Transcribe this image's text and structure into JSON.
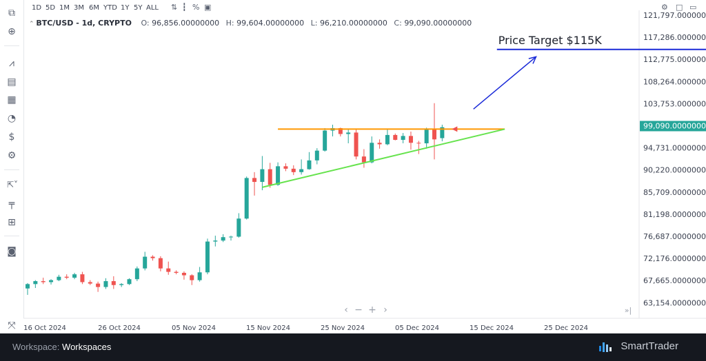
{
  "toolbar": {
    "timeframes": [
      "1D",
      "5D",
      "1M",
      "3M",
      "6M",
      "YTD",
      "1Y",
      "5Y",
      "ALL"
    ],
    "icons": [
      "compare-icon",
      "candles-icon",
      "percent-icon",
      "log-scale-icon"
    ]
  },
  "legend": {
    "symbol": "BTC/USD - 1d, CRYPTO",
    "open_label": "O:",
    "open": "96,856.00000000",
    "high_label": "H:",
    "high": "99,604.00000000",
    "low_label": "L:",
    "low": "96,210.00000000",
    "close_label": "C:",
    "close": "99,090.00000000"
  },
  "footer": {
    "workspace_label": "Workspace:",
    "workspace_value": "Workspaces",
    "brand": "SmartTrader"
  },
  "colors": {
    "up": "#26a69a",
    "down": "#ef5350",
    "resistance": "#ff9800",
    "support": "#66e34d",
    "target": "#1a2ad8",
    "price_badge": "#26a69a"
  },
  "chart_data": {
    "type": "candlestick",
    "title": "",
    "x_tick_labels": [
      "16 Oct 2024",
      "26 Oct 2024",
      "05 Nov 2024",
      "15 Nov 2024",
      "25 Nov 2024",
      "05 Dec 2024",
      "15 Dec 2024",
      "25 Dec 2024"
    ],
    "y_tick_labels": [
      "121,797.00000000",
      "117,286.00000000",
      "112,775.00000000",
      "108,264.00000000",
      "103,753.00000000",
      "99,090.00000000",
      "94,731.00000000",
      "90,220.00000000",
      "85,709.00000000",
      "81,198.00000000",
      "76,687.00000000",
      "72,176.00000000",
      "67,665.00000000",
      "63,154.00000000"
    ],
    "y_range": [
      60000,
      123000
    ],
    "x_range": [
      "2024-10-14",
      "2024-12-31"
    ],
    "current_price": 99090,
    "candles": [
      {
        "d": "2024-10-14",
        "o": 66100,
        "h": 67200,
        "l": 64800,
        "c": 67000
      },
      {
        "d": "2024-10-15",
        "o": 67000,
        "h": 67800,
        "l": 66200,
        "c": 67600
      },
      {
        "d": "2024-10-16",
        "o": 67600,
        "h": 68300,
        "l": 67000,
        "c": 67400
      },
      {
        "d": "2024-10-17",
        "o": 67400,
        "h": 68000,
        "l": 66900,
        "c": 67800
      },
      {
        "d": "2024-10-18",
        "o": 67800,
        "h": 68900,
        "l": 67600,
        "c": 68500
      },
      {
        "d": "2024-10-19",
        "o": 68500,
        "h": 69000,
        "l": 68000,
        "c": 68300
      },
      {
        "d": "2024-10-20",
        "o": 68300,
        "h": 69300,
        "l": 68000,
        "c": 69000
      },
      {
        "d": "2024-10-21",
        "o": 69000,
        "h": 69500,
        "l": 67000,
        "c": 67400
      },
      {
        "d": "2024-10-22",
        "o": 67400,
        "h": 67800,
        "l": 66800,
        "c": 67100
      },
      {
        "d": "2024-10-23",
        "o": 67100,
        "h": 67500,
        "l": 65400,
        "c": 66400
      },
      {
        "d": "2024-10-24",
        "o": 66400,
        "h": 68200,
        "l": 66000,
        "c": 67600
      },
      {
        "d": "2024-10-25",
        "o": 67600,
        "h": 68600,
        "l": 66000,
        "c": 66800
      },
      {
        "d": "2024-10-26",
        "o": 66800,
        "h": 67200,
        "l": 66400,
        "c": 67000
      },
      {
        "d": "2024-10-27",
        "o": 67000,
        "h": 68200,
        "l": 66800,
        "c": 68000
      },
      {
        "d": "2024-10-28",
        "o": 68000,
        "h": 70600,
        "l": 67600,
        "c": 70200
      },
      {
        "d": "2024-10-29",
        "o": 70200,
        "h": 73600,
        "l": 69800,
        "c": 72600
      },
      {
        "d": "2024-10-30",
        "o": 72600,
        "h": 72900,
        "l": 71800,
        "c": 72300
      },
      {
        "d": "2024-10-31",
        "o": 72300,
        "h": 72700,
        "l": 69600,
        "c": 70200
      },
      {
        "d": "2024-11-01",
        "o": 70200,
        "h": 71600,
        "l": 68900,
        "c": 69500
      },
      {
        "d": "2024-11-02",
        "o": 69500,
        "h": 69800,
        "l": 69000,
        "c": 69300
      },
      {
        "d": "2024-11-03",
        "o": 69300,
        "h": 69600,
        "l": 67900,
        "c": 68800
      },
      {
        "d": "2024-11-04",
        "o": 68800,
        "h": 69000,
        "l": 66800,
        "c": 67800
      },
      {
        "d": "2024-11-05",
        "o": 67800,
        "h": 70500,
        "l": 67500,
        "c": 69400
      },
      {
        "d": "2024-11-06",
        "o": 69400,
        "h": 76300,
        "l": 69000,
        "c": 75700
      },
      {
        "d": "2024-11-07",
        "o": 75700,
        "h": 76900,
        "l": 74700,
        "c": 75900
      },
      {
        "d": "2024-11-08",
        "o": 75900,
        "h": 77200,
        "l": 75600,
        "c": 76600
      },
      {
        "d": "2024-11-09",
        "o": 76600,
        "h": 76900,
        "l": 75900,
        "c": 76700
      },
      {
        "d": "2024-11-10",
        "o": 76700,
        "h": 81500,
        "l": 76500,
        "c": 80400
      },
      {
        "d": "2024-11-11",
        "o": 80400,
        "h": 89000,
        "l": 80200,
        "c": 88700
      },
      {
        "d": "2024-11-12",
        "o": 88700,
        "h": 89900,
        "l": 85100,
        "c": 87900
      },
      {
        "d": "2024-11-13",
        "o": 87900,
        "h": 93200,
        "l": 86200,
        "c": 90500
      },
      {
        "d": "2024-11-14",
        "o": 90500,
        "h": 91800,
        "l": 86700,
        "c": 87300
      },
      {
        "d": "2024-11-15",
        "o": 87300,
        "h": 91900,
        "l": 87100,
        "c": 91100
      },
      {
        "d": "2024-11-16",
        "o": 91100,
        "h": 91700,
        "l": 90100,
        "c": 90600
      },
      {
        "d": "2024-11-17",
        "o": 90600,
        "h": 91300,
        "l": 89300,
        "c": 89900
      },
      {
        "d": "2024-11-18",
        "o": 89900,
        "h": 92500,
        "l": 89400,
        "c": 90500
      },
      {
        "d": "2024-11-19",
        "o": 90500,
        "h": 94000,
        "l": 90400,
        "c": 92300
      },
      {
        "d": "2024-11-20",
        "o": 92300,
        "h": 94800,
        "l": 91500,
        "c": 94300
      },
      {
        "d": "2024-11-21",
        "o": 94300,
        "h": 98900,
        "l": 94100,
        "c": 98400
      },
      {
        "d": "2024-11-22",
        "o": 98400,
        "h": 99600,
        "l": 97200,
        "c": 98900
      },
      {
        "d": "2024-11-23",
        "o": 98900,
        "h": 99000,
        "l": 97200,
        "c": 97700
      },
      {
        "d": "2024-11-24",
        "o": 97700,
        "h": 98600,
        "l": 95800,
        "c": 98000
      },
      {
        "d": "2024-11-25",
        "o": 98000,
        "h": 98800,
        "l": 92500,
        "c": 93100
      },
      {
        "d": "2024-11-26",
        "o": 93100,
        "h": 94600,
        "l": 90800,
        "c": 91900
      },
      {
        "d": "2024-11-27",
        "o": 91900,
        "h": 97200,
        "l": 91700,
        "c": 95900
      },
      {
        "d": "2024-11-28",
        "o": 95900,
        "h": 96600,
        "l": 94700,
        "c": 95600
      },
      {
        "d": "2024-11-29",
        "o": 95600,
        "h": 98700,
        "l": 95400,
        "c": 97500
      },
      {
        "d": "2024-11-30",
        "o": 97500,
        "h": 97800,
        "l": 96400,
        "c": 96500
      },
      {
        "d": "2024-12-01",
        "o": 96500,
        "h": 97900,
        "l": 95800,
        "c": 97300
      },
      {
        "d": "2024-12-02",
        "o": 97300,
        "h": 98200,
        "l": 94500,
        "c": 95900
      },
      {
        "d": "2024-12-03",
        "o": 95900,
        "h": 96300,
        "l": 93600,
        "c": 95800
      },
      {
        "d": "2024-12-04",
        "o": 95800,
        "h": 99000,
        "l": 94700,
        "c": 98600
      },
      {
        "d": "2024-12-05",
        "o": 98600,
        "h": 104000,
        "l": 92500,
        "c": 96600
      },
      {
        "d": "2024-12-06",
        "o": 96856,
        "h": 99604,
        "l": 96210,
        "c": 99090
      }
    ]
  },
  "annotations": {
    "price_target_label": "Price Target $115K",
    "price_target_value": 115000,
    "target_line_start": "2024-12-13",
    "resistance": {
      "value": 98700,
      "from": "2024-11-15",
      "to": "2024-12-14"
    },
    "support": {
      "from_date": "2024-11-13",
      "from_value": 86800,
      "to_date": "2024-12-14",
      "to_value": 98700
    },
    "arrow": {
      "from_date": "2024-12-10",
      "from_value": 102800,
      "to_date": "2024-12-18",
      "to_value": 113500
    }
  }
}
